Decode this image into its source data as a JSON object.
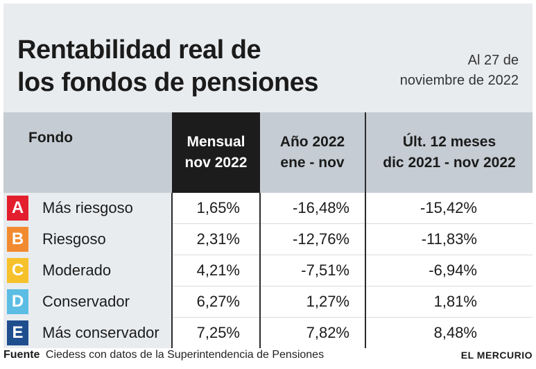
{
  "header": {
    "title_lines": [
      "Rentabilidad real de",
      "los fondos de pensiones"
    ],
    "date_lines": [
      "Al 27 de",
      "noviembre de 2022"
    ]
  },
  "chart_data": {
    "type": "table",
    "columns": [
      {
        "label_lines": [
          "Fondo"
        ]
      },
      {
        "label_lines": [
          "Mensual",
          "nov 2022"
        ],
        "highlight": true
      },
      {
        "label_lines": [
          "Año 2022",
          "ene - nov"
        ]
      },
      {
        "label_lines": [
          "Últ. 12 meses",
          "dic 2021 - nov 2022"
        ]
      }
    ],
    "rows": [
      {
        "letter": "A",
        "name": "Más riesgoso",
        "color": "#e41f2d",
        "mensual": "1,65%",
        "anio": "-16,48%",
        "ult12": "-15,42%"
      },
      {
        "letter": "B",
        "name": "Riesgoso",
        "color": "#f28b30",
        "mensual": "2,31%",
        "anio": "-12,76%",
        "ult12": "-11,83%"
      },
      {
        "letter": "C",
        "name": "Moderado",
        "color": "#f6c12a",
        "mensual": "4,21%",
        "anio": "-7,51%",
        "ult12": "-6,94%"
      },
      {
        "letter": "D",
        "name": "Conservador",
        "color": "#5cbde4",
        "mensual": "6,27%",
        "anio": "1,27%",
        "ult12": "1,81%"
      },
      {
        "letter": "E",
        "name": "Más conservador",
        "color": "#1f4e8f",
        "mensual": "7,25%",
        "anio": "7,82%",
        "ult12": "8,48%"
      }
    ]
  },
  "footer": {
    "source_label": "Fuente",
    "source_text": "Ciedess con datos de la Superintendencia de Pensiones",
    "brand": "EL MERCURIO"
  }
}
